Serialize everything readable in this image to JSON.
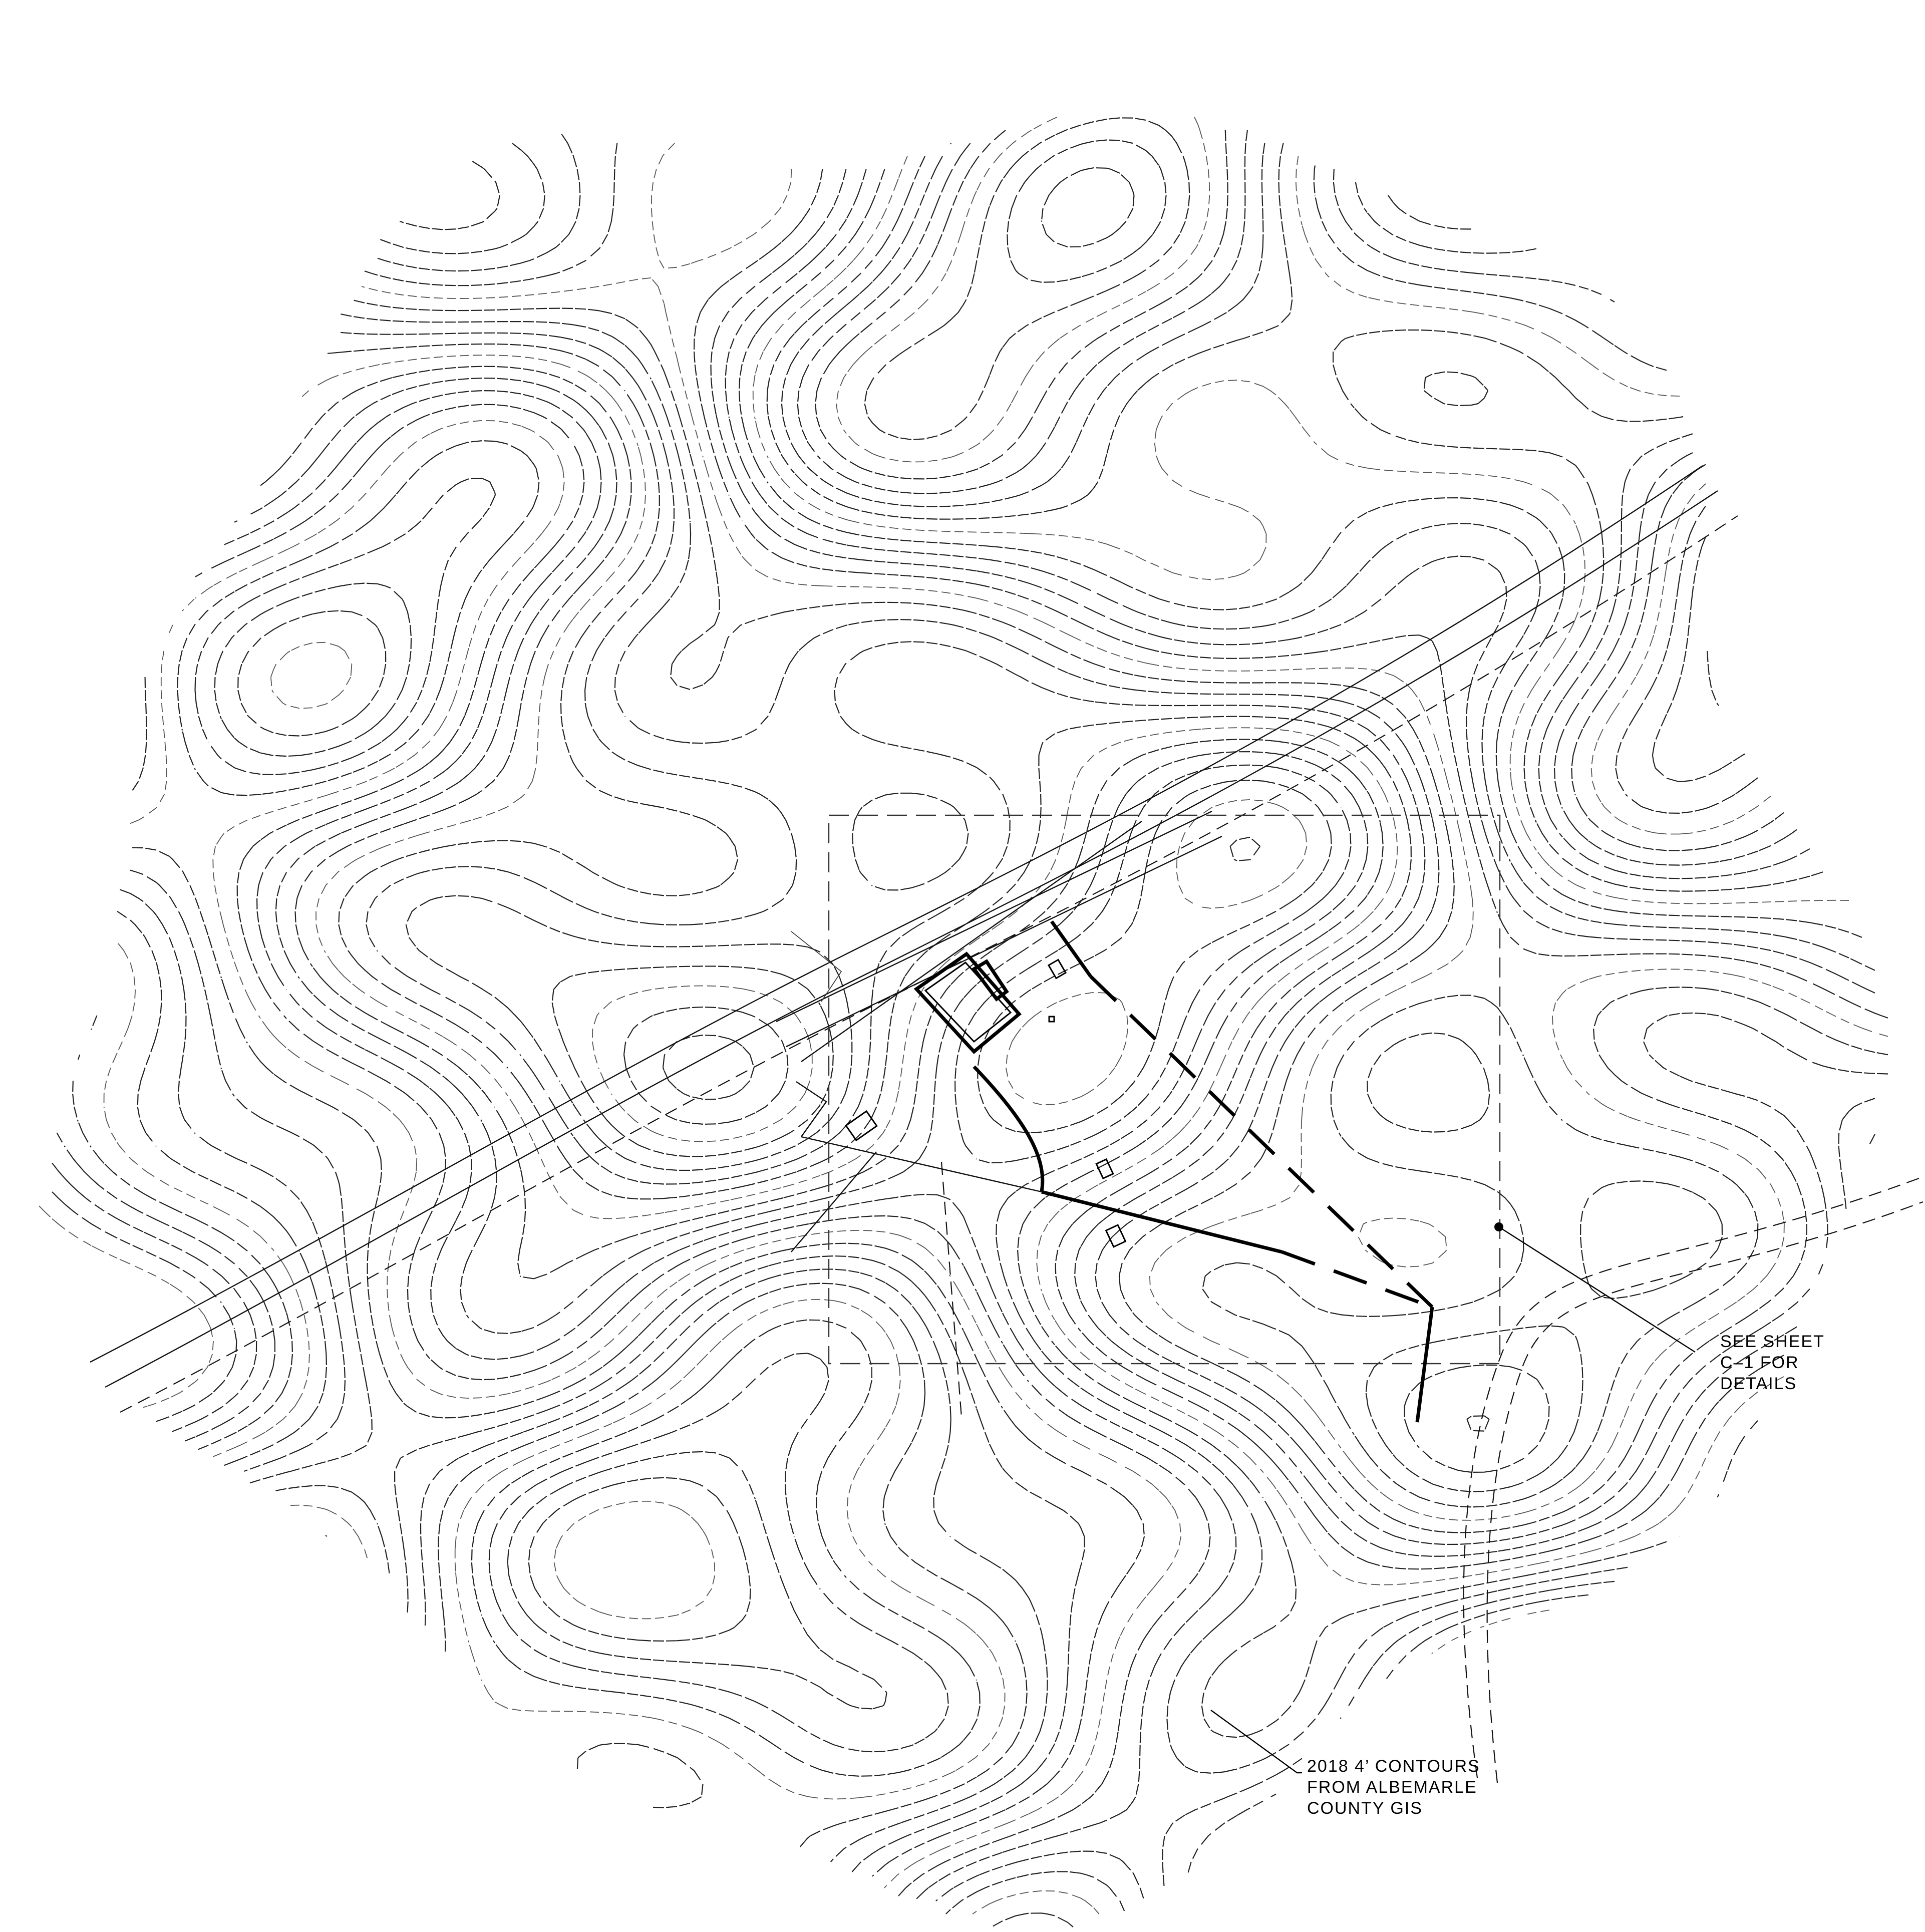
{
  "drawing": {
    "type": "site topographic plan",
    "line_color": "#000000",
    "background": "#ffffff"
  },
  "notes": {
    "detail_reference": {
      "line1": "SEE SHEET",
      "line2": "C–1 FOR",
      "line3": "DETAILS"
    },
    "contour_source": {
      "line1": "2018 4’ CONTOURS",
      "line2": "FROM ALBEMARLE",
      "line3": "COUNTY GIS"
    }
  },
  "legend_items": {
    "contours": "dashed contour lines",
    "property_boundary": "heavy solid and dashed boundary",
    "detail_area": "dashed rectangle"
  }
}
